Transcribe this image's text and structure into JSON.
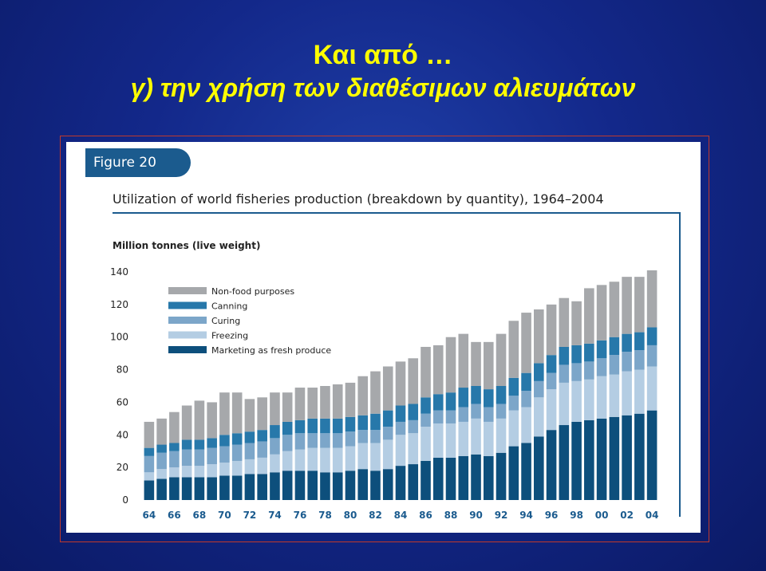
{
  "slide": {
    "title_line1": "Και από …",
    "title_line2": "γ) την χρήση των διαθέσιμων αλιευμάτων"
  },
  "figure": {
    "badge": "Figure 20",
    "title": "Utilization of world fisheries production (breakdown by quantity), 1964–2004"
  },
  "chart_data": {
    "type": "bar",
    "stacked": true,
    "ylabel": "Million tonnes (live weight)",
    "ylim": [
      0,
      140
    ],
    "yticks": [
      0,
      20,
      40,
      60,
      80,
      100,
      120,
      140
    ],
    "grid": false,
    "legend_position": "top-left",
    "categories": [
      "64",
      "65",
      "66",
      "67",
      "68",
      "69",
      "70",
      "71",
      "72",
      "73",
      "74",
      "75",
      "76",
      "77",
      "78",
      "79",
      "80",
      "81",
      "82",
      "83",
      "84",
      "85",
      "86",
      "87",
      "88",
      "89",
      "90",
      "91",
      "92",
      "93",
      "94",
      "95",
      "96",
      "97",
      "98",
      "99",
      "00",
      "01",
      "02",
      "03",
      "04"
    ],
    "x_tick_labels": [
      "64",
      "66",
      "68",
      "70",
      "72",
      "74",
      "76",
      "78",
      "80",
      "82",
      "84",
      "86",
      "88",
      "90",
      "92",
      "94",
      "96",
      "98",
      "00",
      "02",
      "04"
    ],
    "series": [
      {
        "name": "Marketing as fresh produce",
        "color": "#0d4f7c",
        "values": [
          12,
          13,
          14,
          14,
          14,
          14,
          15,
          15,
          16,
          16,
          17,
          18,
          18,
          18,
          17,
          17,
          18,
          19,
          18,
          19,
          21,
          22,
          24,
          26,
          26,
          27,
          28,
          27,
          29,
          33,
          35,
          39,
          43,
          46,
          48,
          49,
          50,
          51,
          52,
          53,
          55
        ]
      },
      {
        "name": "Freezing",
        "color": "#b4cde3",
        "values": [
          5,
          6,
          6,
          7,
          7,
          8,
          8,
          9,
          9,
          10,
          11,
          12,
          13,
          14,
          15,
          15,
          15,
          16,
          17,
          18,
          19,
          19,
          21,
          21,
          21,
          21,
          22,
          21,
          21,
          22,
          22,
          24,
          25,
          26,
          25,
          25,
          26,
          26,
          27,
          27,
          27
        ]
      },
      {
        "name": "Curing",
        "color": "#7ca6c9",
        "values": [
          10,
          10,
          10,
          10,
          10,
          10,
          10,
          10,
          10,
          10,
          10,
          10,
          10,
          9,
          9,
          9,
          9,
          8,
          8,
          8,
          8,
          8,
          8,
          8,
          8,
          9,
          9,
          9,
          9,
          9,
          10,
          10,
          10,
          11,
          11,
          11,
          11,
          12,
          12,
          12,
          13
        ]
      },
      {
        "name": "Canning",
        "color": "#2778aa",
        "values": [
          5,
          5,
          5,
          6,
          6,
          6,
          7,
          7,
          7,
          7,
          8,
          8,
          8,
          9,
          9,
          9,
          9,
          9,
          10,
          10,
          10,
          10,
          10,
          10,
          11,
          12,
          11,
          11,
          11,
          11,
          11,
          11,
          11,
          11,
          11,
          11,
          11,
          11,
          11,
          11,
          11
        ]
      },
      {
        "name": "Non-food purposes",
        "color": "#a6a8ab",
        "values": [
          16,
          16,
          19,
          21,
          24,
          22,
          26,
          25,
          20,
          20,
          20,
          18,
          20,
          19,
          20,
          21,
          21,
          24,
          26,
          27,
          27,
          28,
          31,
          30,
          34,
          33,
          27,
          29,
          32,
          35,
          37,
          33,
          31,
          30,
          27,
          34,
          34,
          34,
          35,
          34,
          35
        ]
      }
    ]
  }
}
